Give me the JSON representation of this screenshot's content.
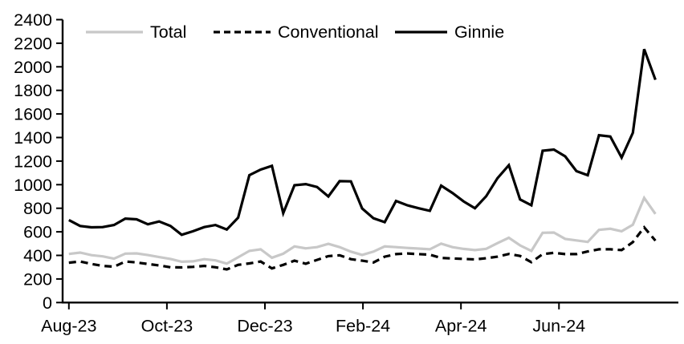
{
  "chart_data": {
    "type": "line",
    "title": "",
    "grid": false,
    "legend_position": "top",
    "x_axis": {
      "tick_labels": [
        "Aug-23",
        "Oct-23",
        "Dec-23",
        "Feb-24",
        "Apr-24",
        "Jun-24"
      ],
      "tick_week_positions": [
        0,
        8.69,
        17.38,
        26.07,
        34.76,
        43.45
      ]
    },
    "y_axis": {
      "min": 0,
      "max": 2400,
      "step": 200,
      "tick_labels": [
        "0",
        "200",
        "400",
        "600",
        "800",
        "1000",
        "1200",
        "1400",
        "1600",
        "1800",
        "2000",
        "2200",
        "2400"
      ]
    },
    "series": [
      {
        "name": "Total",
        "color": "#c8c8c8",
        "dash": "",
        "values": [
          412,
          424,
          402,
          392,
          372,
          415,
          417,
          403,
          386,
          370,
          346,
          350,
          368,
          358,
          330,
          384,
          438,
          452,
          380,
          414,
          476,
          460,
          470,
          498,
          470,
          432,
          404,
          432,
          476,
          470,
          463,
          458,
          452,
          500,
          470,
          455,
          445,
          456,
          504,
          550,
          485,
          438,
          592,
          594,
          540,
          527,
          514,
          616,
          626,
          605,
          660,
          888,
          752
        ]
      },
      {
        "name": "Conventional",
        "color": "#000000",
        "dash": "9 6",
        "values": [
          338,
          348,
          327,
          311,
          304,
          348,
          340,
          327,
          315,
          299,
          298,
          303,
          311,
          299,
          281,
          320,
          332,
          348,
          290,
          320,
          355,
          329,
          362,
          394,
          401,
          368,
          355,
          340,
          389,
          411,
          416,
          411,
          406,
          378,
          374,
          370,
          366,
          376,
          389,
          412,
          395,
          342,
          411,
          422,
          411,
          411,
          433,
          452,
          452,
          445,
          513,
          638,
          525
        ]
      },
      {
        "name": "Ginnie",
        "color": "#000000",
        "dash": "",
        "values": [
          700,
          650,
          638,
          640,
          658,
          712,
          706,
          664,
          688,
          650,
          575,
          605,
          640,
          658,
          620,
          720,
          1080,
          1128,
          1160,
          758,
          995,
          1005,
          980,
          900,
          1030,
          1028,
          798,
          715,
          682,
          862,
          825,
          800,
          778,
          992,
          930,
          858,
          800,
          902,
          1055,
          1165,
          875,
          825,
          1288,
          1298,
          1240,
          1115,
          1080,
          1420,
          1408,
          1230,
          1440,
          2150,
          1890
        ]
      }
    ]
  },
  "legend": {
    "items": [
      {
        "label": "Total"
      },
      {
        "label": "Conventional"
      },
      {
        "label": "Ginnie"
      }
    ]
  }
}
